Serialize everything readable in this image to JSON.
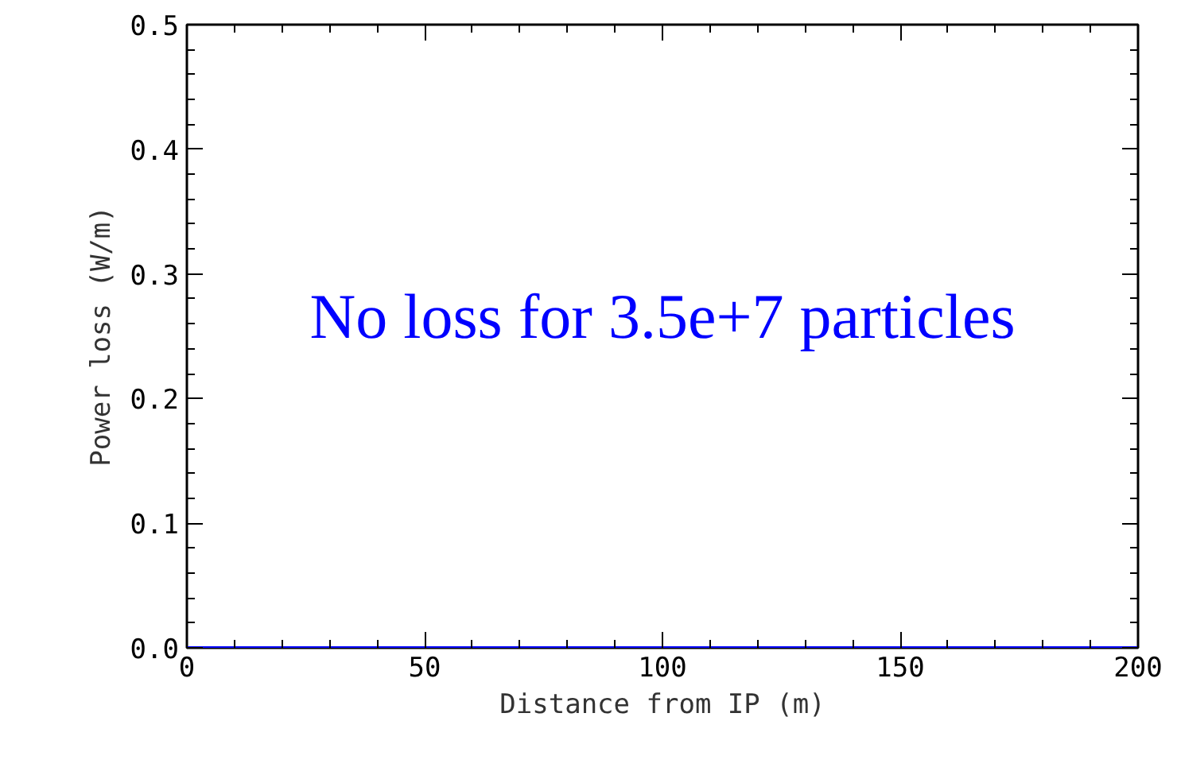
{
  "chart_data": {
    "type": "line",
    "xlabel": "Distance from IP (m)",
    "ylabel": "Power loss (W/m)",
    "x": [
      0,
      200
    ],
    "series": [
      {
        "color": "#0000ff",
        "values": [
          0,
          0
        ]
      }
    ],
    "xlim": [
      0,
      200
    ],
    "ylim": [
      0,
      0.5
    ],
    "xticks": [
      0,
      50,
      100,
      150,
      200
    ],
    "yticks": [
      {
        "value": 0,
        "label": "0.0"
      },
      0.1,
      0.2,
      0.3,
      0.4,
      0.5
    ],
    "annotations": [
      "No loss for 3.5e+7 particles"
    ],
    "grid": false
  }
}
